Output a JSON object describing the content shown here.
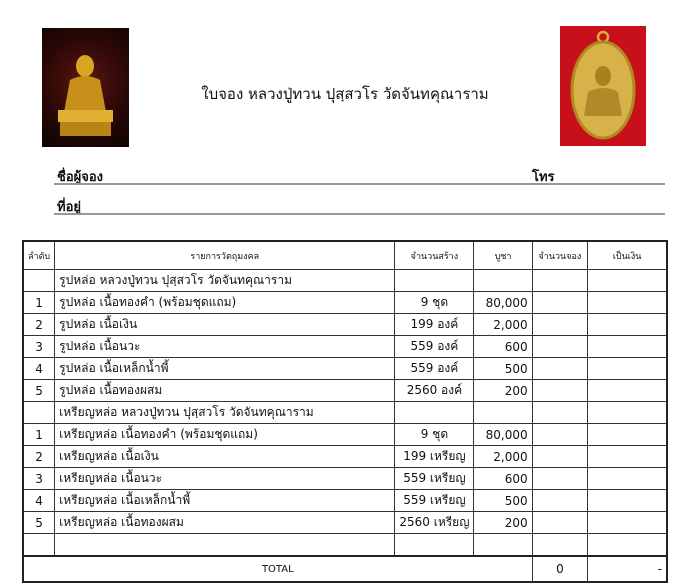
{
  "header": {
    "title": "ใบจอง หลวงปู่ทวน ปุสฺสวโร วัดจันทคุณาราม",
    "images": [
      "gold-monk-statue-image",
      "gold-medal-image"
    ]
  },
  "form": {
    "name_label": "ชื่อผู้จอง",
    "phone_label": "โทร",
    "address_label": "ที่อยู่"
  },
  "table": {
    "columns": [
      "ลำดับ",
      "รายการวัตถุมงคล",
      "จำนวนสร้าง",
      "บูชา",
      "จำนวนจอง",
      "เป็นเงิน"
    ],
    "sections": [
      {
        "heading": "รูปหล่อ หลวงปู่ทวน ปุสฺสวโร วัดจันทคุณาราม",
        "rows": [
          {
            "no": "1",
            "item": "รูปหล่อ เนื้อทองคำ (พร้อมชุดแถม)",
            "qty": "9 ชุด",
            "price": "80,000"
          },
          {
            "no": "2",
            "item": "รูปหล่อ เนื้อเงิน",
            "qty": "199 องค์",
            "price": "2,000"
          },
          {
            "no": "3",
            "item": "รูปหล่อ เนื้อนวะ",
            "qty": "559 องค์",
            "price": "600"
          },
          {
            "no": "4",
            "item": "รูปหล่อ เนื้อเหล็กน้ำพี้",
            "qty": "559 องค์",
            "price": "500"
          },
          {
            "no": "5",
            "item": "รูปหล่อ เนื้อทองผสม",
            "qty": "2560 องค์",
            "price": "200"
          }
        ]
      },
      {
        "heading": "เหรียญหล่อ หลวงปู่ทวน ปุสฺสวโร วัดจันทคุณาราม",
        "rows": [
          {
            "no": "1",
            "item": "เหรียญหล่อ เนื้อทองคำ (พร้อมชุดแถม)",
            "qty": "9 ชุด",
            "price": "80,000"
          },
          {
            "no": "2",
            "item": "เหรียญหล่อ เนื้อเงิน",
            "qty": "199 เหรียญ",
            "price": "2,000"
          },
          {
            "no": "3",
            "item": "เหรียญหล่อ เนื้อนวะ",
            "qty": "559 เหรียญ",
            "price": "600"
          },
          {
            "no": "4",
            "item": "เหรียญหล่อ เนื้อเหล็กน้ำพี้",
            "qty": "559 เหรียญ",
            "price": "500"
          },
          {
            "no": "5",
            "item": "เหรียญหล่อ เนื้อทองผสม",
            "qty": "2560 เหรียญ",
            "price": "200"
          }
        ]
      }
    ],
    "total_label": "TOTAL",
    "total_qty": "0",
    "total_amount": "-"
  }
}
